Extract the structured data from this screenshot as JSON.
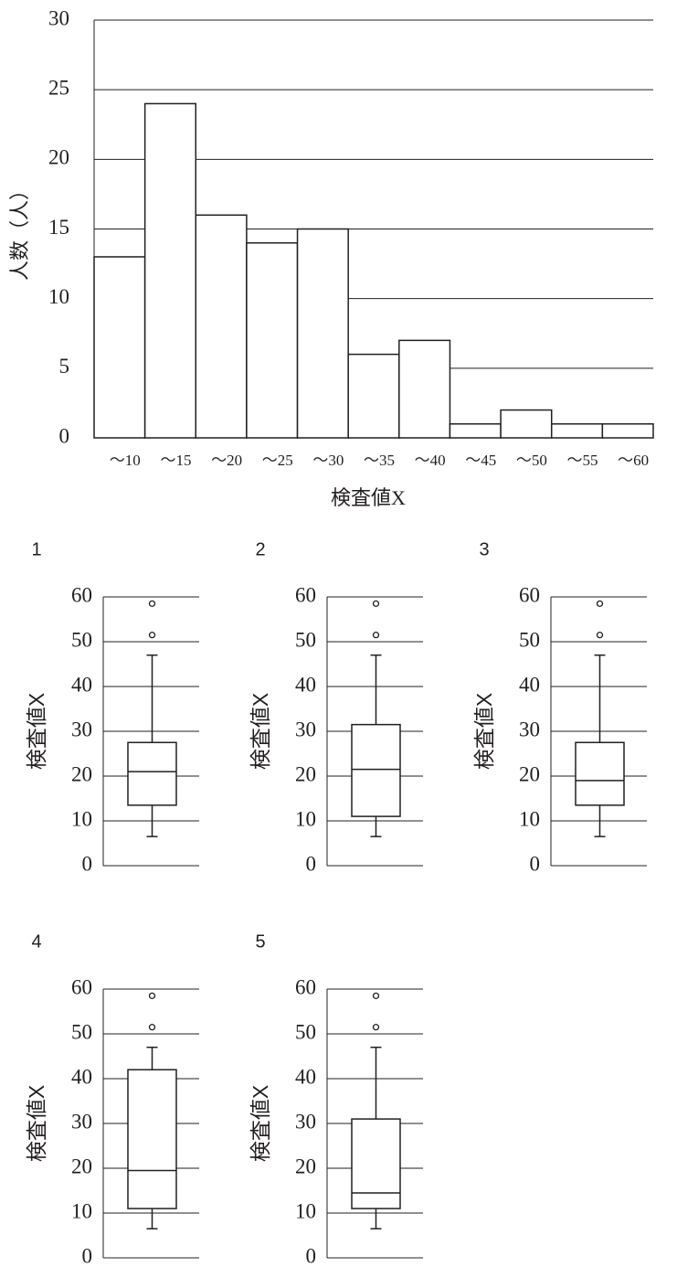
{
  "chart_data": [
    {
      "type": "bar",
      "xlabel": "検査値X",
      "ylabel": "人数（人）",
      "categories": [
        "～10",
        "～15",
        "～20",
        "～25",
        "～30",
        "～35",
        "～40",
        "～45",
        "～50",
        "～55",
        "～60"
      ],
      "values": [
        13,
        24,
        16,
        14,
        15,
        6,
        7,
        1,
        2,
        1,
        1
      ],
      "color": "#ffffff",
      "ylim": [
        0,
        30
      ],
      "yticks": [
        0,
        5,
        10,
        15,
        20,
        25,
        30
      ],
      "grid": true
    },
    {
      "type": "box",
      "label": "1",
      "ylabel": "検査値X",
      "ylim": [
        0,
        60
      ],
      "yticks": [
        0,
        10,
        20,
        30,
        40,
        50,
        60
      ],
      "grid": true,
      "whisker_low": 6.5,
      "q1": 13.5,
      "median": 21,
      "q3": 27.5,
      "whisker_high": 47,
      "outliers": [
        51.5,
        58.5
      ]
    },
    {
      "type": "box",
      "label": "2",
      "ylabel": "検査値X",
      "ylim": [
        0,
        60
      ],
      "yticks": [
        0,
        10,
        20,
        30,
        40,
        50,
        60
      ],
      "grid": true,
      "whisker_low": 6.5,
      "q1": 11,
      "median": 21.5,
      "q3": 31.5,
      "whisker_high": 47,
      "outliers": [
        51.5,
        58.5
      ]
    },
    {
      "type": "box",
      "label": "3",
      "ylabel": "検査値X",
      "ylim": [
        0,
        60
      ],
      "yticks": [
        0,
        10,
        20,
        30,
        40,
        50,
        60
      ],
      "grid": true,
      "whisker_low": 6.5,
      "q1": 13.5,
      "median": 19,
      "q3": 27.5,
      "whisker_high": 47,
      "outliers": [
        51.5,
        58.5
      ]
    },
    {
      "type": "box",
      "label": "4",
      "ylabel": "検査値X",
      "ylim": [
        0,
        60
      ],
      "yticks": [
        0,
        10,
        20,
        30,
        40,
        50,
        60
      ],
      "grid": true,
      "whisker_low": 6.5,
      "q1": 11,
      "median": 19.5,
      "q3": 42,
      "whisker_high": 47,
      "outliers": [
        51.5,
        58.5
      ]
    },
    {
      "type": "box",
      "label": "5",
      "ylabel": "検査値X",
      "ylim": [
        0,
        60
      ],
      "yticks": [
        0,
        10,
        20,
        30,
        40,
        50,
        60
      ],
      "grid": true,
      "whisker_low": 6.5,
      "q1": 11,
      "median": 14.5,
      "q3": 31,
      "whisker_high": 47,
      "outliers": [
        51.5,
        58.5
      ]
    }
  ]
}
